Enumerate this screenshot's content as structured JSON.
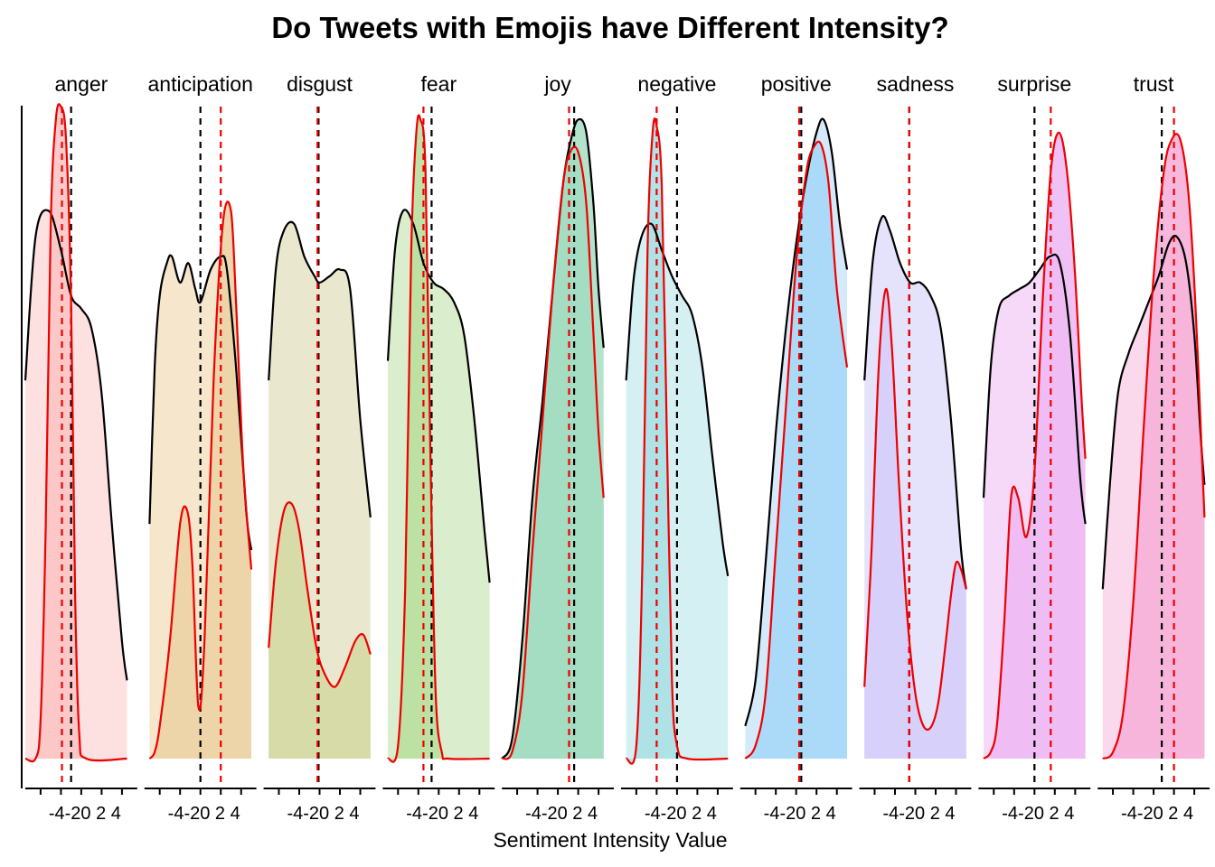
{
  "chart_data": {
    "type": "area",
    "title": "Do Tweets with Emojis have Different Intensity?",
    "xlabel": "Sentiment Intensity Value",
    "ylabel": "",
    "xlim": [
      -5.5,
      5.5
    ],
    "ticks": [
      -4,
      -2,
      0,
      2,
      4
    ],
    "tick_labels": [
      "-4",
      "-2",
      "0",
      "2",
      "4"
    ],
    "tick_label_text": "-4-20 2 4",
    "grid": false,
    "line_colors": {
      "all_tweets": "#000000",
      "emoji_tweets": "#ee0000"
    },
    "panels": [
      {
        "name": "anger",
        "fill": "#fde0e0",
        "fill_dark": "#fbc4c4",
        "mean_black": -1.0,
        "mean_red": -1.9,
        "x_start": -5.5,
        "x_end": 4.5,
        "black": [
          [
            -5.5,
            0.58
          ],
          [
            -4.5,
            0.8
          ],
          [
            -3.2,
            0.84
          ],
          [
            -2.0,
            0.78
          ],
          [
            -1.0,
            0.71
          ],
          [
            0.0,
            0.69
          ],
          [
            1.0,
            0.66
          ],
          [
            2.0,
            0.56
          ],
          [
            3.0,
            0.36
          ],
          [
            4.0,
            0.18
          ],
          [
            4.5,
            0.12
          ]
        ],
        "red": [
          [
            -5.5,
            0.0
          ],
          [
            -4.5,
            0.0
          ],
          [
            -4.0,
            0.06
          ],
          [
            -3.5,
            0.35
          ],
          [
            -3.0,
            0.82
          ],
          [
            -2.5,
            0.98
          ],
          [
            -2.0,
            1.0
          ],
          [
            -1.5,
            0.95
          ],
          [
            -1.0,
            0.7
          ],
          [
            -0.6,
            0.25
          ],
          [
            -0.2,
            0.04
          ],
          [
            0.5,
            0.0
          ],
          [
            4.5,
            0.0
          ]
        ]
      },
      {
        "name": "anticipation",
        "fill": "#f5e6cc",
        "fill_dark": "#ecd1a5",
        "mean_black": 0.0,
        "mean_red": 2.0,
        "x_start": -5.0,
        "x_end": 5.0,
        "black": [
          [
            -5.0,
            0.36
          ],
          [
            -4.5,
            0.6
          ],
          [
            -4.0,
            0.71
          ],
          [
            -3.3,
            0.76
          ],
          [
            -2.8,
            0.77
          ],
          [
            -2.0,
            0.73
          ],
          [
            -1.2,
            0.76
          ],
          [
            -0.5,
            0.72
          ],
          [
            0.0,
            0.7
          ],
          [
            1.0,
            0.75
          ],
          [
            2.0,
            0.77
          ],
          [
            2.6,
            0.75
          ],
          [
            3.5,
            0.6
          ],
          [
            4.5,
            0.38
          ],
          [
            5.0,
            0.32
          ]
        ],
        "red": [
          [
            -5.0,
            0.0
          ],
          [
            -4.5,
            0.01
          ],
          [
            -4.0,
            0.05
          ],
          [
            -3.0,
            0.18
          ],
          [
            -2.0,
            0.36
          ],
          [
            -1.3,
            0.38
          ],
          [
            -0.8,
            0.3
          ],
          [
            -0.2,
            0.08
          ],
          [
            0.4,
            0.18
          ],
          [
            1.3,
            0.58
          ],
          [
            2.2,
            0.82
          ],
          [
            3.0,
            0.84
          ],
          [
            3.5,
            0.7
          ],
          [
            4.2,
            0.45
          ],
          [
            5.0,
            0.29
          ]
        ]
      },
      {
        "name": "disgust",
        "fill": "#e9e8cf",
        "fill_dark": "#d5d9a2",
        "mean_black": -0.1,
        "mean_red": -0.2,
        "x_start": -5.0,
        "x_end": 5.0,
        "black": [
          [
            -5.0,
            0.58
          ],
          [
            -4.3,
            0.75
          ],
          [
            -3.5,
            0.81
          ],
          [
            -2.5,
            0.82
          ],
          [
            -1.5,
            0.77
          ],
          [
            -0.5,
            0.74
          ],
          [
            0.0,
            0.73
          ],
          [
            1.0,
            0.74
          ],
          [
            2.0,
            0.75
          ],
          [
            3.0,
            0.72
          ],
          [
            4.0,
            0.52
          ],
          [
            5.0,
            0.37
          ]
        ],
        "red": [
          [
            -5.0,
            0.17
          ],
          [
            -4.3,
            0.3
          ],
          [
            -3.5,
            0.38
          ],
          [
            -2.7,
            0.39
          ],
          [
            -2.0,
            0.35
          ],
          [
            -1.2,
            0.26
          ],
          [
            -0.3,
            0.17
          ],
          [
            0.5,
            0.13
          ],
          [
            1.5,
            0.11
          ],
          [
            2.5,
            0.14
          ],
          [
            3.5,
            0.18
          ],
          [
            4.3,
            0.19
          ],
          [
            5.0,
            0.16
          ]
        ]
      },
      {
        "name": "fear",
        "fill": "#daedcc",
        "fill_dark": "#b8df9e",
        "mean_black": -0.7,
        "mean_red": -1.5,
        "x_start": -5.0,
        "x_end": 5.0,
        "black": [
          [
            -5.0,
            0.61
          ],
          [
            -4.3,
            0.78
          ],
          [
            -3.5,
            0.84
          ],
          [
            -2.5,
            0.82
          ],
          [
            -1.5,
            0.76
          ],
          [
            -0.5,
            0.73
          ],
          [
            0.5,
            0.72
          ],
          [
            1.5,
            0.7
          ],
          [
            2.5,
            0.65
          ],
          [
            3.5,
            0.52
          ],
          [
            4.5,
            0.35
          ],
          [
            5.0,
            0.27
          ]
        ],
        "red": [
          [
            -5.0,
            0.0
          ],
          [
            -4.0,
            0.02
          ],
          [
            -3.3,
            0.26
          ],
          [
            -2.7,
            0.78
          ],
          [
            -2.2,
            0.96
          ],
          [
            -1.8,
            0.98
          ],
          [
            -1.3,
            0.9
          ],
          [
            -0.8,
            0.45
          ],
          [
            -0.3,
            0.1
          ],
          [
            0.3,
            0.01
          ],
          [
            1.0,
            0.0
          ],
          [
            5.0,
            0.0
          ]
        ]
      },
      {
        "name": "joy",
        "fill": "#b4e3cc",
        "fill_dark": "#a2dcc0",
        "mean_black": 1.6,
        "mean_red": 1.1,
        "x_start": -5.5,
        "x_end": 4.5,
        "black": [
          [
            -5.5,
            0.0
          ],
          [
            -4.5,
            0.03
          ],
          [
            -3.5,
            0.18
          ],
          [
            -2.5,
            0.4
          ],
          [
            -1.5,
            0.55
          ],
          [
            -0.5,
            0.72
          ],
          [
            0.5,
            0.88
          ],
          [
            1.3,
            0.95
          ],
          [
            2.0,
            0.98
          ],
          [
            2.8,
            0.96
          ],
          [
            3.5,
            0.85
          ],
          [
            4.0,
            0.72
          ],
          [
            4.5,
            0.63
          ]
        ],
        "red": [
          [
            -5.5,
            0.0
          ],
          [
            -4.5,
            0.01
          ],
          [
            -3.5,
            0.1
          ],
          [
            -2.5,
            0.32
          ],
          [
            -1.5,
            0.52
          ],
          [
            -0.5,
            0.72
          ],
          [
            0.5,
            0.88
          ],
          [
            1.2,
            0.93
          ],
          [
            2.0,
            0.93
          ],
          [
            2.8,
            0.85
          ],
          [
            3.5,
            0.65
          ],
          [
            4.0,
            0.5
          ],
          [
            4.5,
            0.4
          ]
        ]
      },
      {
        "name": "negative",
        "fill": "#d4f0f2",
        "fill_dark": "#aae0e6",
        "mean_black": 0.0,
        "mean_red": -2.0,
        "x_start": -5.0,
        "x_end": 5.0,
        "black": [
          [
            -5.0,
            0.58
          ],
          [
            -4.3,
            0.73
          ],
          [
            -3.5,
            0.8
          ],
          [
            -2.5,
            0.82
          ],
          [
            -1.5,
            0.78
          ],
          [
            -0.5,
            0.74
          ],
          [
            0.5,
            0.71
          ],
          [
            1.5,
            0.68
          ],
          [
            2.5,
            0.6
          ],
          [
            3.5,
            0.46
          ],
          [
            4.5,
            0.33
          ],
          [
            5.0,
            0.28
          ]
        ],
        "red": [
          [
            -5.0,
            0.0
          ],
          [
            -4.0,
            0.02
          ],
          [
            -3.4,
            0.3
          ],
          [
            -2.9,
            0.78
          ],
          [
            -2.4,
            0.96
          ],
          [
            -2.0,
            0.97
          ],
          [
            -1.5,
            0.88
          ],
          [
            -1.0,
            0.5
          ],
          [
            -0.5,
            0.12
          ],
          [
            0.0,
            0.02
          ],
          [
            1.0,
            0.0
          ],
          [
            5.0,
            0.0
          ]
        ]
      },
      {
        "name": "positive",
        "fill": "#d4eafa",
        "fill_dark": "#a6d8f8",
        "mean_black": 0.5,
        "mean_red": 0.3,
        "x_start": -5.0,
        "x_end": 5.0,
        "black": [
          [
            -5.0,
            0.05
          ],
          [
            -4.0,
            0.12
          ],
          [
            -3.0,
            0.3
          ],
          [
            -2.0,
            0.5
          ],
          [
            -1.0,
            0.66
          ],
          [
            0.0,
            0.79
          ],
          [
            1.0,
            0.89
          ],
          [
            2.0,
            0.96
          ],
          [
            2.7,
            0.98
          ],
          [
            3.5,
            0.93
          ],
          [
            4.3,
            0.82
          ],
          [
            5.0,
            0.75
          ]
        ],
        "red": [
          [
            -5.0,
            0.0
          ],
          [
            -4.0,
            0.02
          ],
          [
            -3.0,
            0.1
          ],
          [
            -2.0,
            0.32
          ],
          [
            -1.0,
            0.54
          ],
          [
            0.0,
            0.76
          ],
          [
            1.0,
            0.9
          ],
          [
            1.8,
            0.94
          ],
          [
            2.5,
            0.94
          ],
          [
            3.2,
            0.88
          ],
          [
            4.0,
            0.72
          ],
          [
            5.0,
            0.6
          ]
        ]
      },
      {
        "name": "sadness",
        "fill": "#e5e2fb",
        "fill_dark": "#d4cefa",
        "mean_black": -0.6,
        "mean_red": -0.6,
        "x_start": -5.0,
        "x_end": 5.0,
        "black": [
          [
            -5.0,
            0.58
          ],
          [
            -4.2,
            0.76
          ],
          [
            -3.3,
            0.83
          ],
          [
            -2.5,
            0.81
          ],
          [
            -1.5,
            0.76
          ],
          [
            -0.5,
            0.73
          ],
          [
            0.5,
            0.73
          ],
          [
            1.5,
            0.71
          ],
          [
            2.5,
            0.66
          ],
          [
            3.5,
            0.52
          ],
          [
            4.5,
            0.32
          ],
          [
            5.0,
            0.26
          ]
        ],
        "red": [
          [
            -5.0,
            0.11
          ],
          [
            -4.3,
            0.32
          ],
          [
            -3.6,
            0.6
          ],
          [
            -2.9,
            0.72
          ],
          [
            -2.3,
            0.63
          ],
          [
            -1.6,
            0.42
          ],
          [
            -0.8,
            0.22
          ],
          [
            0.0,
            0.1
          ],
          [
            0.8,
            0.05
          ],
          [
            1.6,
            0.05
          ],
          [
            2.3,
            0.09
          ],
          [
            3.0,
            0.18
          ],
          [
            3.5,
            0.25
          ],
          [
            4.0,
            0.3
          ],
          [
            4.5,
            0.29
          ],
          [
            5.0,
            0.26
          ]
        ]
      },
      {
        "name": "surprise",
        "fill": "#f6d8f8",
        "fill_dark": "#eebaf3",
        "mean_black": 0.0,
        "mean_red": 1.6,
        "x_start": -5.0,
        "x_end": 5.0,
        "black": [
          [
            -5.0,
            0.4
          ],
          [
            -4.3,
            0.6
          ],
          [
            -3.5,
            0.69
          ],
          [
            -2.5,
            0.71
          ],
          [
            -1.5,
            0.72
          ],
          [
            -0.5,
            0.73
          ],
          [
            0.5,
            0.75
          ],
          [
            1.5,
            0.77
          ],
          [
            2.5,
            0.76
          ],
          [
            3.5,
            0.65
          ],
          [
            4.5,
            0.43
          ],
          [
            5.0,
            0.36
          ]
        ],
        "red": [
          [
            -5.0,
            0.0
          ],
          [
            -4.3,
            0.01
          ],
          [
            -3.7,
            0.05
          ],
          [
            -3.0,
            0.2
          ],
          [
            -2.3,
            0.4
          ],
          [
            -1.6,
            0.4
          ],
          [
            -0.8,
            0.34
          ],
          [
            0.0,
            0.44
          ],
          [
            0.8,
            0.7
          ],
          [
            1.6,
            0.9
          ],
          [
            2.4,
            0.96
          ],
          [
            3.2,
            0.9
          ],
          [
            4.0,
            0.74
          ],
          [
            4.6,
            0.56
          ],
          [
            5.0,
            0.46
          ]
        ]
      },
      {
        "name": "trust",
        "fill": "#fbd9ec",
        "fill_dark": "#f6b0d9",
        "mean_black": 0.8,
        "mean_red": 2.0,
        "x_start": -5.0,
        "x_end": 5.0,
        "black": [
          [
            -5.0,
            0.26
          ],
          [
            -4.3,
            0.42
          ],
          [
            -3.5,
            0.56
          ],
          [
            -2.5,
            0.62
          ],
          [
            -1.5,
            0.66
          ],
          [
            -0.5,
            0.7
          ],
          [
            0.5,
            0.74
          ],
          [
            1.5,
            0.79
          ],
          [
            2.3,
            0.8
          ],
          [
            3.2,
            0.76
          ],
          [
            4.0,
            0.65
          ],
          [
            4.6,
            0.5
          ],
          [
            5.0,
            0.42
          ]
        ],
        "red": [
          [
            -5.0,
            0.0
          ],
          [
            -4.0,
            0.01
          ],
          [
            -3.0,
            0.07
          ],
          [
            -2.0,
            0.24
          ],
          [
            -1.0,
            0.5
          ],
          [
            0.0,
            0.74
          ],
          [
            1.0,
            0.9
          ],
          [
            1.8,
            0.95
          ],
          [
            2.6,
            0.95
          ],
          [
            3.4,
            0.87
          ],
          [
            4.1,
            0.7
          ],
          [
            4.7,
            0.48
          ],
          [
            5.0,
            0.37
          ]
        ]
      }
    ]
  }
}
